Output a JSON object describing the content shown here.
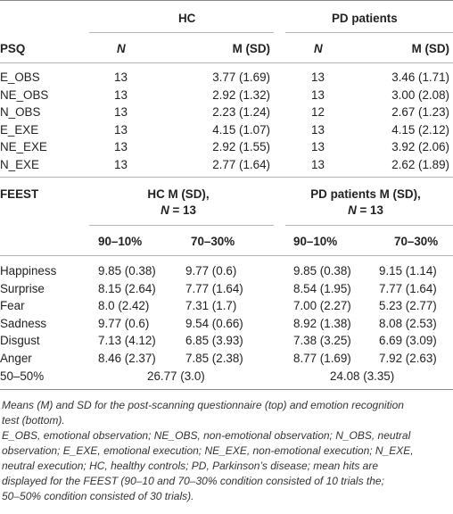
{
  "psq": {
    "group_headers": [
      "HC",
      "PD patients"
    ],
    "row_label_header": "PSQ",
    "col_headers": [
      "N",
      "M (SD)",
      "N",
      "M (SD)"
    ],
    "rows": [
      {
        "label": "E_OBS",
        "hc_n": "13",
        "hc_m": "3.77 (1.69)",
        "pd_n": "13",
        "pd_m": "3.46 (1.71)"
      },
      {
        "label": "NE_OBS",
        "hc_n": "13",
        "hc_m": "2.92 (1.32)",
        "pd_n": "13",
        "pd_m": "3.00 (2.08)"
      },
      {
        "label": "N_OBS",
        "hc_n": "13",
        "hc_m": "2.23 (1.24)",
        "pd_n": "12",
        "pd_m": "2.67 (1.23)"
      },
      {
        "label": "E_EXE",
        "hc_n": "13",
        "hc_m": "4.15 (1.07)",
        "pd_n": "13",
        "pd_m": "4.15 (2.12)"
      },
      {
        "label": "NE_EXE",
        "hc_n": "13",
        "hc_m": "2.92 (1.55)",
        "pd_n": "13",
        "pd_m": "3.92 (2.06)"
      },
      {
        "label": "N_EXE",
        "hc_n": "13",
        "hc_m": "2.77 (1.64)",
        "pd_n": "13",
        "pd_m": "2.62 (1.89)"
      }
    ]
  },
  "feest": {
    "row_label_header": "FEEST",
    "hc_header_line1": "HC M (SD),",
    "hc_header_line2_prefix": "N",
    "hc_header_line2_suffix": " = 13",
    "pd_header_line1": "PD patients M (SD),",
    "pd_header_line2_prefix": "N",
    "pd_header_line2_suffix": " = 13",
    "col_headers": [
      "90–10%",
      "70–30%",
      "90–10%",
      "70–30%"
    ],
    "rows": [
      {
        "label": "Happiness",
        "hc_90": "9.85 (0.38)",
        "hc_70": "9.77 (0.6)",
        "pd_90": "9.85 (0.38)",
        "pd_70": "9.15 (1.14)"
      },
      {
        "label": "Surprise",
        "hc_90": "8.15 (2.64)",
        "hc_70": "7.77 (1.64)",
        "pd_90": "8.54 (1.95)",
        "pd_70": "7.77 (1.64)"
      },
      {
        "label": "Fear",
        "hc_90": "8.0 (2.42)",
        "hc_70": "7.31 (1.7)",
        "pd_90": "7.00 (2.27)",
        "pd_70": "5.23 (2.77)"
      },
      {
        "label": "Sadness",
        "hc_90": "9.77 (0.6)",
        "hc_70": "9.54 (0.66)",
        "pd_90": "8.92 (1.38)",
        "pd_70": "8.08 (2.53)"
      },
      {
        "label": "Disgust",
        "hc_90": "7.13 (4.12)",
        "hc_70": "6.85 (3.93)",
        "pd_90": "7.38 (3.25)",
        "pd_70": "6.69 (3.09)"
      },
      {
        "label": "Anger",
        "hc_90": "8.46 (2.37)",
        "hc_70": "7.85 (2.38)",
        "pd_90": "8.77 (1.69)",
        "pd_70": "7.92 (2.63)"
      }
    ],
    "fifty_row": {
      "label": "50–50%",
      "hc": "26.77 (3.0)",
      "pd": "24.08 (3.35)"
    }
  },
  "footnote": {
    "line1": "Means (M) and SD for the post-scanning questionnaire (top) and emotion recognition",
    "line2": "test (bottom).",
    "line3": "E_OBS, emotional observation; NE_OBS, non-emotional observation; N_OBS, neutral",
    "line4": "observation; E_EXE, emotional execution; NE_EXE, non-emotional execution; N_EXE,",
    "line5": "neutral execution; HC, healthy controls; PD, Parkinson’s disease; mean hits are",
    "line6": "displayed for the FEEST (90–10 and 70–30% condition consisted of 10 trials the;",
    "line7": "50–50% condition consisted of 30 trials)."
  }
}
